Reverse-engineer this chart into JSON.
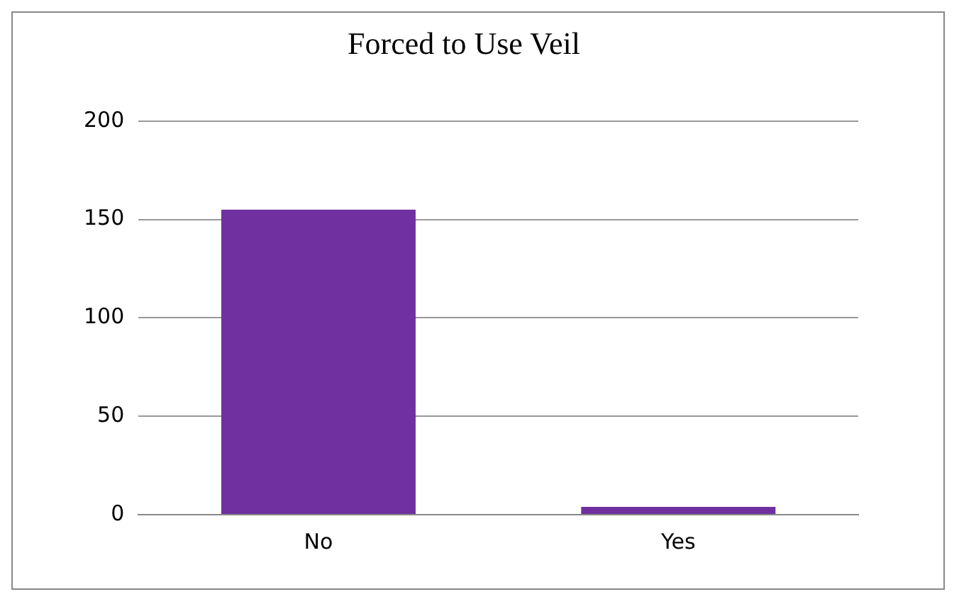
{
  "chart_data": {
    "type": "bar",
    "title": "Forced to Use Veil",
    "categories": [
      "No",
      "Yes"
    ],
    "values": [
      155,
      4
    ],
    "color": "#7030a0",
    "ylim": [
      0,
      200
    ],
    "yticks": [
      0,
      50,
      100,
      150,
      200
    ],
    "grid": "y"
  }
}
